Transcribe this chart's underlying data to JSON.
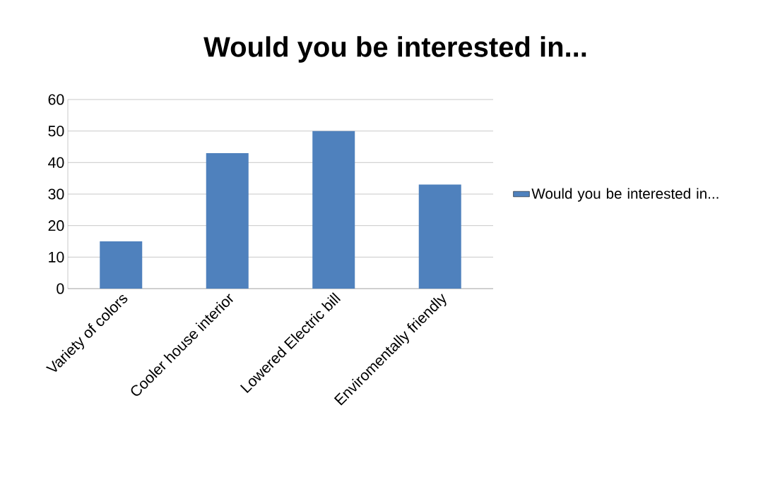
{
  "chart_data": {
    "type": "bar",
    "title": "Would you be interested in...",
    "categories": [
      "Variety of colors",
      "Cooler house interior",
      "Lowered Electric bill",
      "Enviromentally friendly"
    ],
    "series": [
      {
        "name": "Would you be interested in...",
        "color": "#4f81bd",
        "values": [
          15,
          43,
          50,
          33
        ]
      }
    ],
    "ylim": [
      0,
      60
    ],
    "yticks": [
      0,
      10,
      20,
      30,
      40,
      50,
      60
    ],
    "grid": "y",
    "legend": "right"
  }
}
